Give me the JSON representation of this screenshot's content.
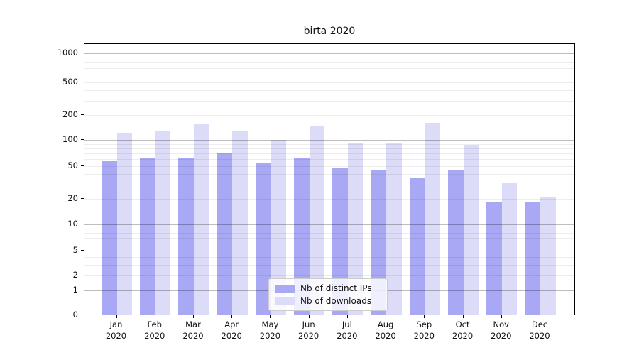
{
  "title": "birta 2020",
  "chart_data": {
    "type": "bar",
    "title": "birta 2020",
    "categories": [
      "Jan",
      "Feb",
      "Mar",
      "Apr",
      "May",
      "Jun",
      "Jul",
      "Aug",
      "Sep",
      "Oct",
      "Nov",
      "Dec"
    ],
    "year": "2020",
    "series": [
      {
        "name": "Nb of distinct IPs",
        "key": "distinct-ips",
        "color": "#a8a8f4",
        "values": [
          57,
          61,
          63,
          70,
          54,
          61,
          48,
          44,
          36,
          44,
          18,
          18
        ]
      },
      {
        "name": "Nb of downloads",
        "key": "downloads",
        "color": "#dcdcf8",
        "values": [
          122,
          130,
          155,
          130,
          100,
          145,
          93,
          93,
          160,
          88,
          31,
          21
        ]
      }
    ],
    "y_axis": {
      "scale": "symlog",
      "tick_labels": [
        0,
        1,
        2,
        5,
        10,
        20,
        50,
        100,
        200,
        500,
        1000
      ],
      "major_gridlines": [
        1,
        10,
        100,
        1000
      ],
      "ylim": [
        0,
        1000
      ]
    },
    "x_axis": {
      "label_format": "month-over-year"
    },
    "legend_position": "bottom-center",
    "grid": true,
    "colors": {
      "major_grid": "#bdbdbd",
      "minor_grid": "#ececec",
      "spine": "#000000",
      "background": "#ffffff"
    }
  }
}
